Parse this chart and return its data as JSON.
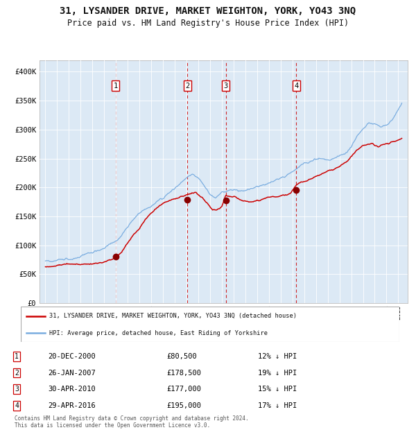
{
  "title": "31, LYSANDER DRIVE, MARKET WEIGHTON, YORK, YO43 3NQ",
  "subtitle": "Price paid vs. HM Land Registry's House Price Index (HPI)",
  "title_fontsize": 10,
  "subtitle_fontsize": 8.5,
  "background_color": "#ffffff",
  "plot_bg_color": "#dce9f5",
  "ylim": [
    0,
    420000
  ],
  "yticks": [
    0,
    50000,
    100000,
    150000,
    200000,
    250000,
    300000,
    350000,
    400000
  ],
  "ytick_labels": [
    "£0",
    "£50K",
    "£100K",
    "£150K",
    "£200K",
    "£250K",
    "£300K",
    "£350K",
    "£400K"
  ],
  "xlim_start": 1994.5,
  "xlim_end": 2025.8,
  "sale_dates": [
    2000.97,
    2007.07,
    2010.33,
    2016.33
  ],
  "sale_prices": [
    80500,
    178500,
    177000,
    195000
  ],
  "sale_labels": [
    "1",
    "2",
    "3",
    "4"
  ],
  "red_line_color": "#cc0000",
  "blue_line_color": "#7aade0",
  "sale_marker_color": "#880000",
  "vline_color": "#cc0000",
  "legend_entries": [
    "31, LYSANDER DRIVE, MARKET WEIGHTON, YORK, YO43 3NQ (detached house)",
    "HPI: Average price, detached house, East Riding of Yorkshire"
  ],
  "table_rows": [
    [
      "1",
      "20-DEC-2000",
      "£80,500",
      "12% ↓ HPI"
    ],
    [
      "2",
      "26-JAN-2007",
      "£178,500",
      "19% ↓ HPI"
    ],
    [
      "3",
      "30-APR-2010",
      "£177,000",
      "15% ↓ HPI"
    ],
    [
      "4",
      "29-APR-2016",
      "£195,000",
      "17% ↓ HPI"
    ]
  ],
  "footer": "Contains HM Land Registry data © Crown copyright and database right 2024.\nThis data is licensed under the Open Government Licence v3.0."
}
